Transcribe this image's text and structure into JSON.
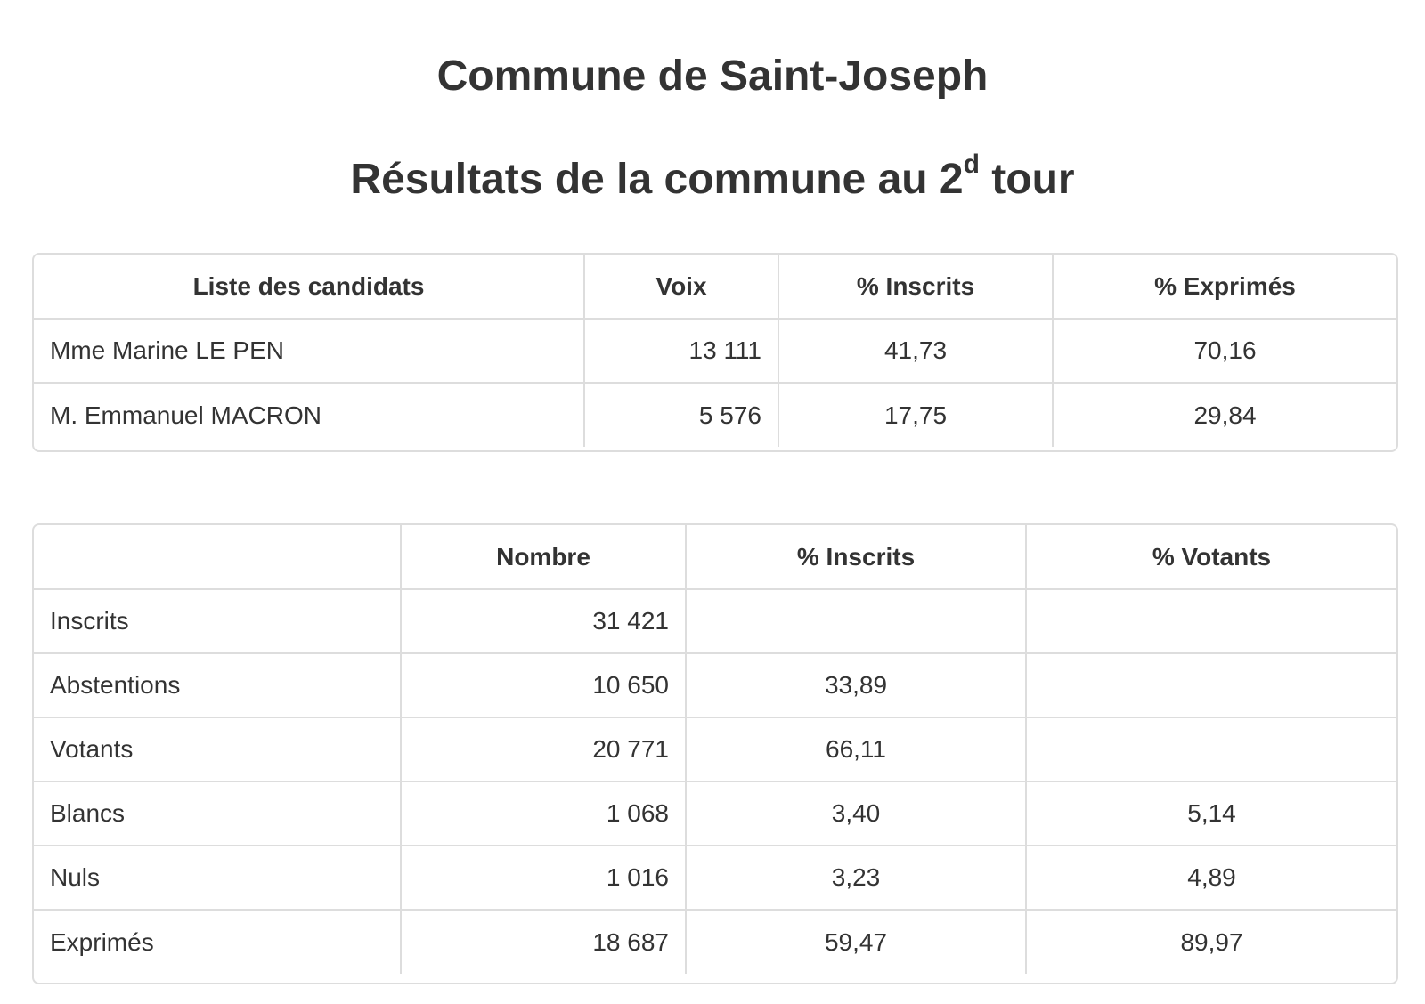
{
  "header": {
    "title": "Commune de Saint-Joseph",
    "subtitle_main": "Résultats de la commune au 2",
    "subtitle_sup": "d",
    "subtitle_end": " tour"
  },
  "candidates_table": {
    "headers": [
      "Liste des candidats",
      "Voix",
      "% Inscrits",
      "% Exprimés"
    ],
    "rows": [
      {
        "name": "Mme Marine LE PEN",
        "voix": "13 111",
        "pct_inscrits": "41,73",
        "pct_exprimes": "70,16"
      },
      {
        "name": "M. Emmanuel MACRON",
        "voix": "5 576",
        "pct_inscrits": "17,75",
        "pct_exprimes": "29,84"
      }
    ]
  },
  "stats_table": {
    "headers": [
      "",
      "Nombre",
      "% Inscrits",
      "% Votants"
    ],
    "rows": [
      {
        "label": "Inscrits",
        "nombre": "31 421",
        "pct_inscrits": "",
        "pct_votants": ""
      },
      {
        "label": "Abstentions",
        "nombre": "10 650",
        "pct_inscrits": "33,89",
        "pct_votants": ""
      },
      {
        "label": "Votants",
        "nombre": "20 771",
        "pct_inscrits": "66,11",
        "pct_votants": ""
      },
      {
        "label": "Blancs",
        "nombre": "1 068",
        "pct_inscrits": "3,40",
        "pct_votants": "5,14"
      },
      {
        "label": "Nuls",
        "nombre": "1 016",
        "pct_inscrits": "3,23",
        "pct_votants": "4,89"
      },
      {
        "label": "Exprimés",
        "nombre": "18 687",
        "pct_inscrits": "59,47",
        "pct_votants": "89,97"
      }
    ]
  }
}
